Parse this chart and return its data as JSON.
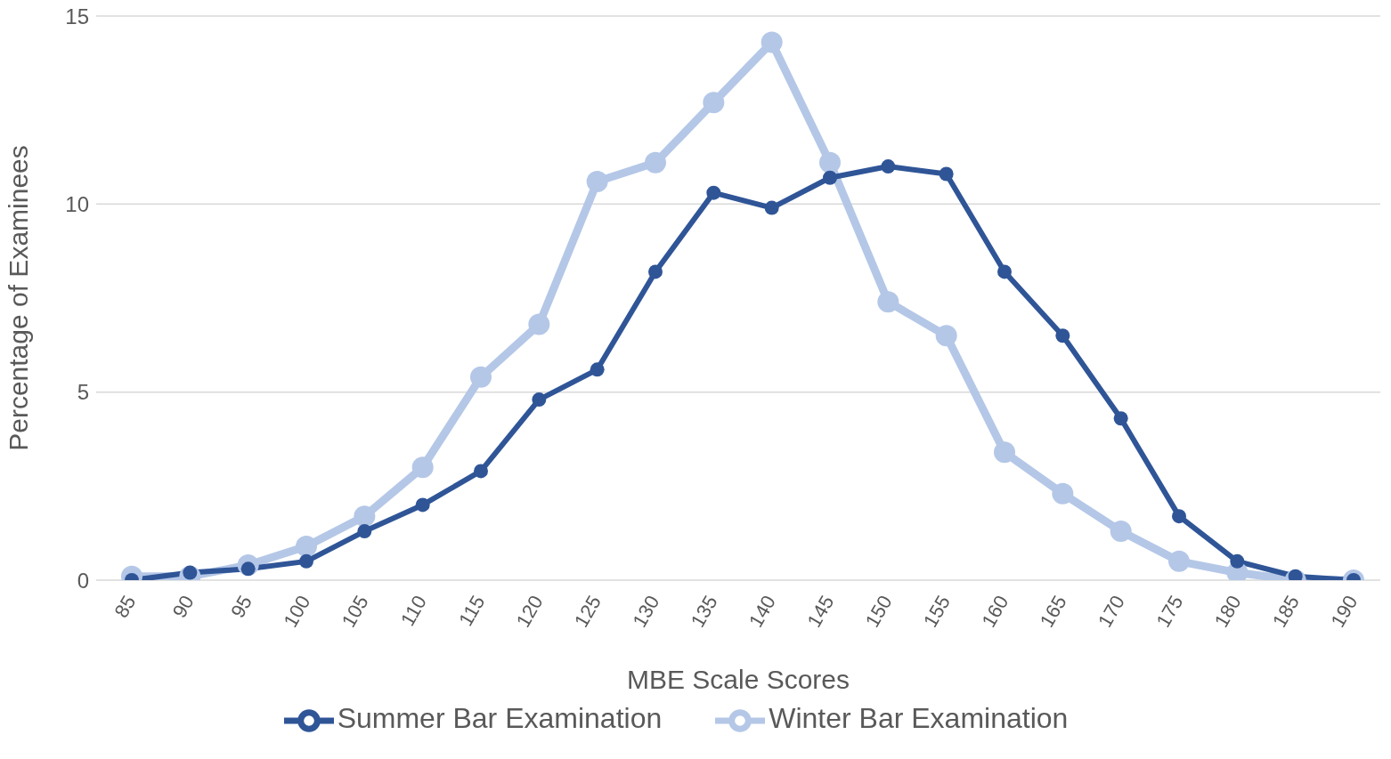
{
  "chart_data": {
    "type": "line",
    "xlabel": "MBE Scale Scores",
    "ylabel": "Percentage of Examinees",
    "categories": [
      "85",
      "90",
      "95",
      "100",
      "105",
      "110",
      "115",
      "120",
      "125",
      "130",
      "135",
      "140",
      "145",
      "150",
      "155",
      "160",
      "165",
      "170",
      "175",
      "180",
      "185",
      "190"
    ],
    "series": [
      {
        "name": "Summer Bar Examination",
        "color": "#2f5597",
        "values": [
          0,
          0.2,
          0.3,
          0.5,
          1.3,
          2.0,
          2.9,
          4.8,
          5.6,
          8.2,
          10.3,
          9.9,
          10.7,
          11.0,
          10.8,
          8.2,
          6.5,
          4.3,
          1.7,
          0.5,
          0.1,
          0
        ]
      },
      {
        "name": "Winter Bar Examination",
        "color": "#b4c7e7",
        "values": [
          0.1,
          0.1,
          0.4,
          0.9,
          1.7,
          3.0,
          5.4,
          6.8,
          10.6,
          11.1,
          12.7,
          14.3,
          11.1,
          7.4,
          6.5,
          3.4,
          2.3,
          1.3,
          0.5,
          0.2,
          0,
          0
        ]
      }
    ],
    "ylim": [
      0,
      15
    ],
    "yticks": [
      0,
      5,
      10,
      15
    ],
    "grid": "y",
    "legend": "bottom",
    "marker": "circle",
    "line_style": "solid"
  }
}
